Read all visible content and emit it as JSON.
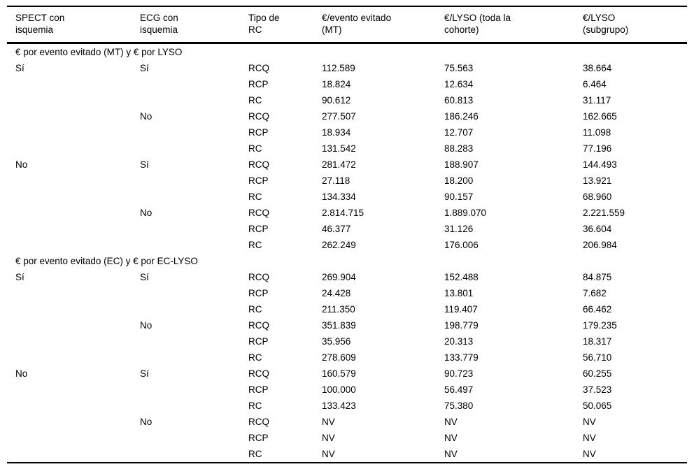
{
  "table": {
    "columns": [
      "SPECT con\nisquemia",
      "ECG con\nisquemia",
      "Tipo de\nRC",
      "€/evento evitado\n(MT)",
      "€/LYSO (toda la\ncohorte)",
      "€/LYSO\n(subgrupo)"
    ],
    "sections": [
      {
        "title": "€ por evento evitado (MT) y € por LYSO",
        "rows": [
          [
            "Sí",
            "Sí",
            "RCQ",
            "112.589",
            "75.563",
            "38.664"
          ],
          [
            "",
            "",
            "RCP",
            "18.824",
            "12.634",
            "6.464"
          ],
          [
            "",
            "",
            "RC",
            "90.612",
            "60.813",
            "31.117"
          ],
          [
            "",
            "No",
            "RCQ",
            "277.507",
            "186.246",
            "162.665"
          ],
          [
            "",
            "",
            "RCP",
            "18.934",
            "12.707",
            "11.098"
          ],
          [
            "",
            "",
            "RC",
            "131.542",
            "88.283",
            "77.196"
          ],
          [
            "No",
            "Sí",
            "RCQ",
            "281.472",
            "188.907",
            "144.493"
          ],
          [
            "",
            "",
            "RCP",
            "27.118",
            "18.200",
            "13.921"
          ],
          [
            "",
            "",
            "RC",
            "134.334",
            "90.157",
            "68.960"
          ],
          [
            "",
            "No",
            "RCQ",
            "2.814.715",
            "1.889.070",
            "2.221.559"
          ],
          [
            "",
            "",
            "RCP",
            "46.377",
            "31.126",
            "36.604"
          ],
          [
            "",
            "",
            "RC",
            "262.249",
            "176.006",
            "206.984"
          ]
        ]
      },
      {
        "title": "€ por evento evitado (EC) y € por EC-LYSO",
        "rows": [
          [
            "Sí",
            "Sí",
            "RCQ",
            "269.904",
            "152.488",
            "84.875"
          ],
          [
            "",
            "",
            "RCP",
            "24.428",
            "13.801",
            "7.682"
          ],
          [
            "",
            "",
            "RC",
            "211.350",
            "119.407",
            "66.462"
          ],
          [
            "",
            "No",
            "RCQ",
            "351.839",
            "198.779",
            "179.235"
          ],
          [
            "",
            "",
            "RCP",
            "35.956",
            "20.313",
            "18.317"
          ],
          [
            "",
            "",
            "RC",
            "278.609",
            "133.779",
            "56.710"
          ],
          [
            "No",
            "Sí",
            "RCQ",
            "160.579",
            "90.723",
            "60.255"
          ],
          [
            "",
            "",
            "RCP",
            "100.000",
            "56.497",
            "37.523"
          ],
          [
            "",
            "",
            "RC",
            "133.423",
            "75.380",
            "50.065"
          ],
          [
            "",
            "No",
            "RCQ",
            "NV",
            "NV",
            "NV"
          ],
          [
            "",
            "",
            "RCP",
            "NV",
            "NV",
            "NV"
          ],
          [
            "",
            "",
            "RC",
            "NV",
            "NV",
            "NV"
          ]
        ]
      }
    ]
  }
}
